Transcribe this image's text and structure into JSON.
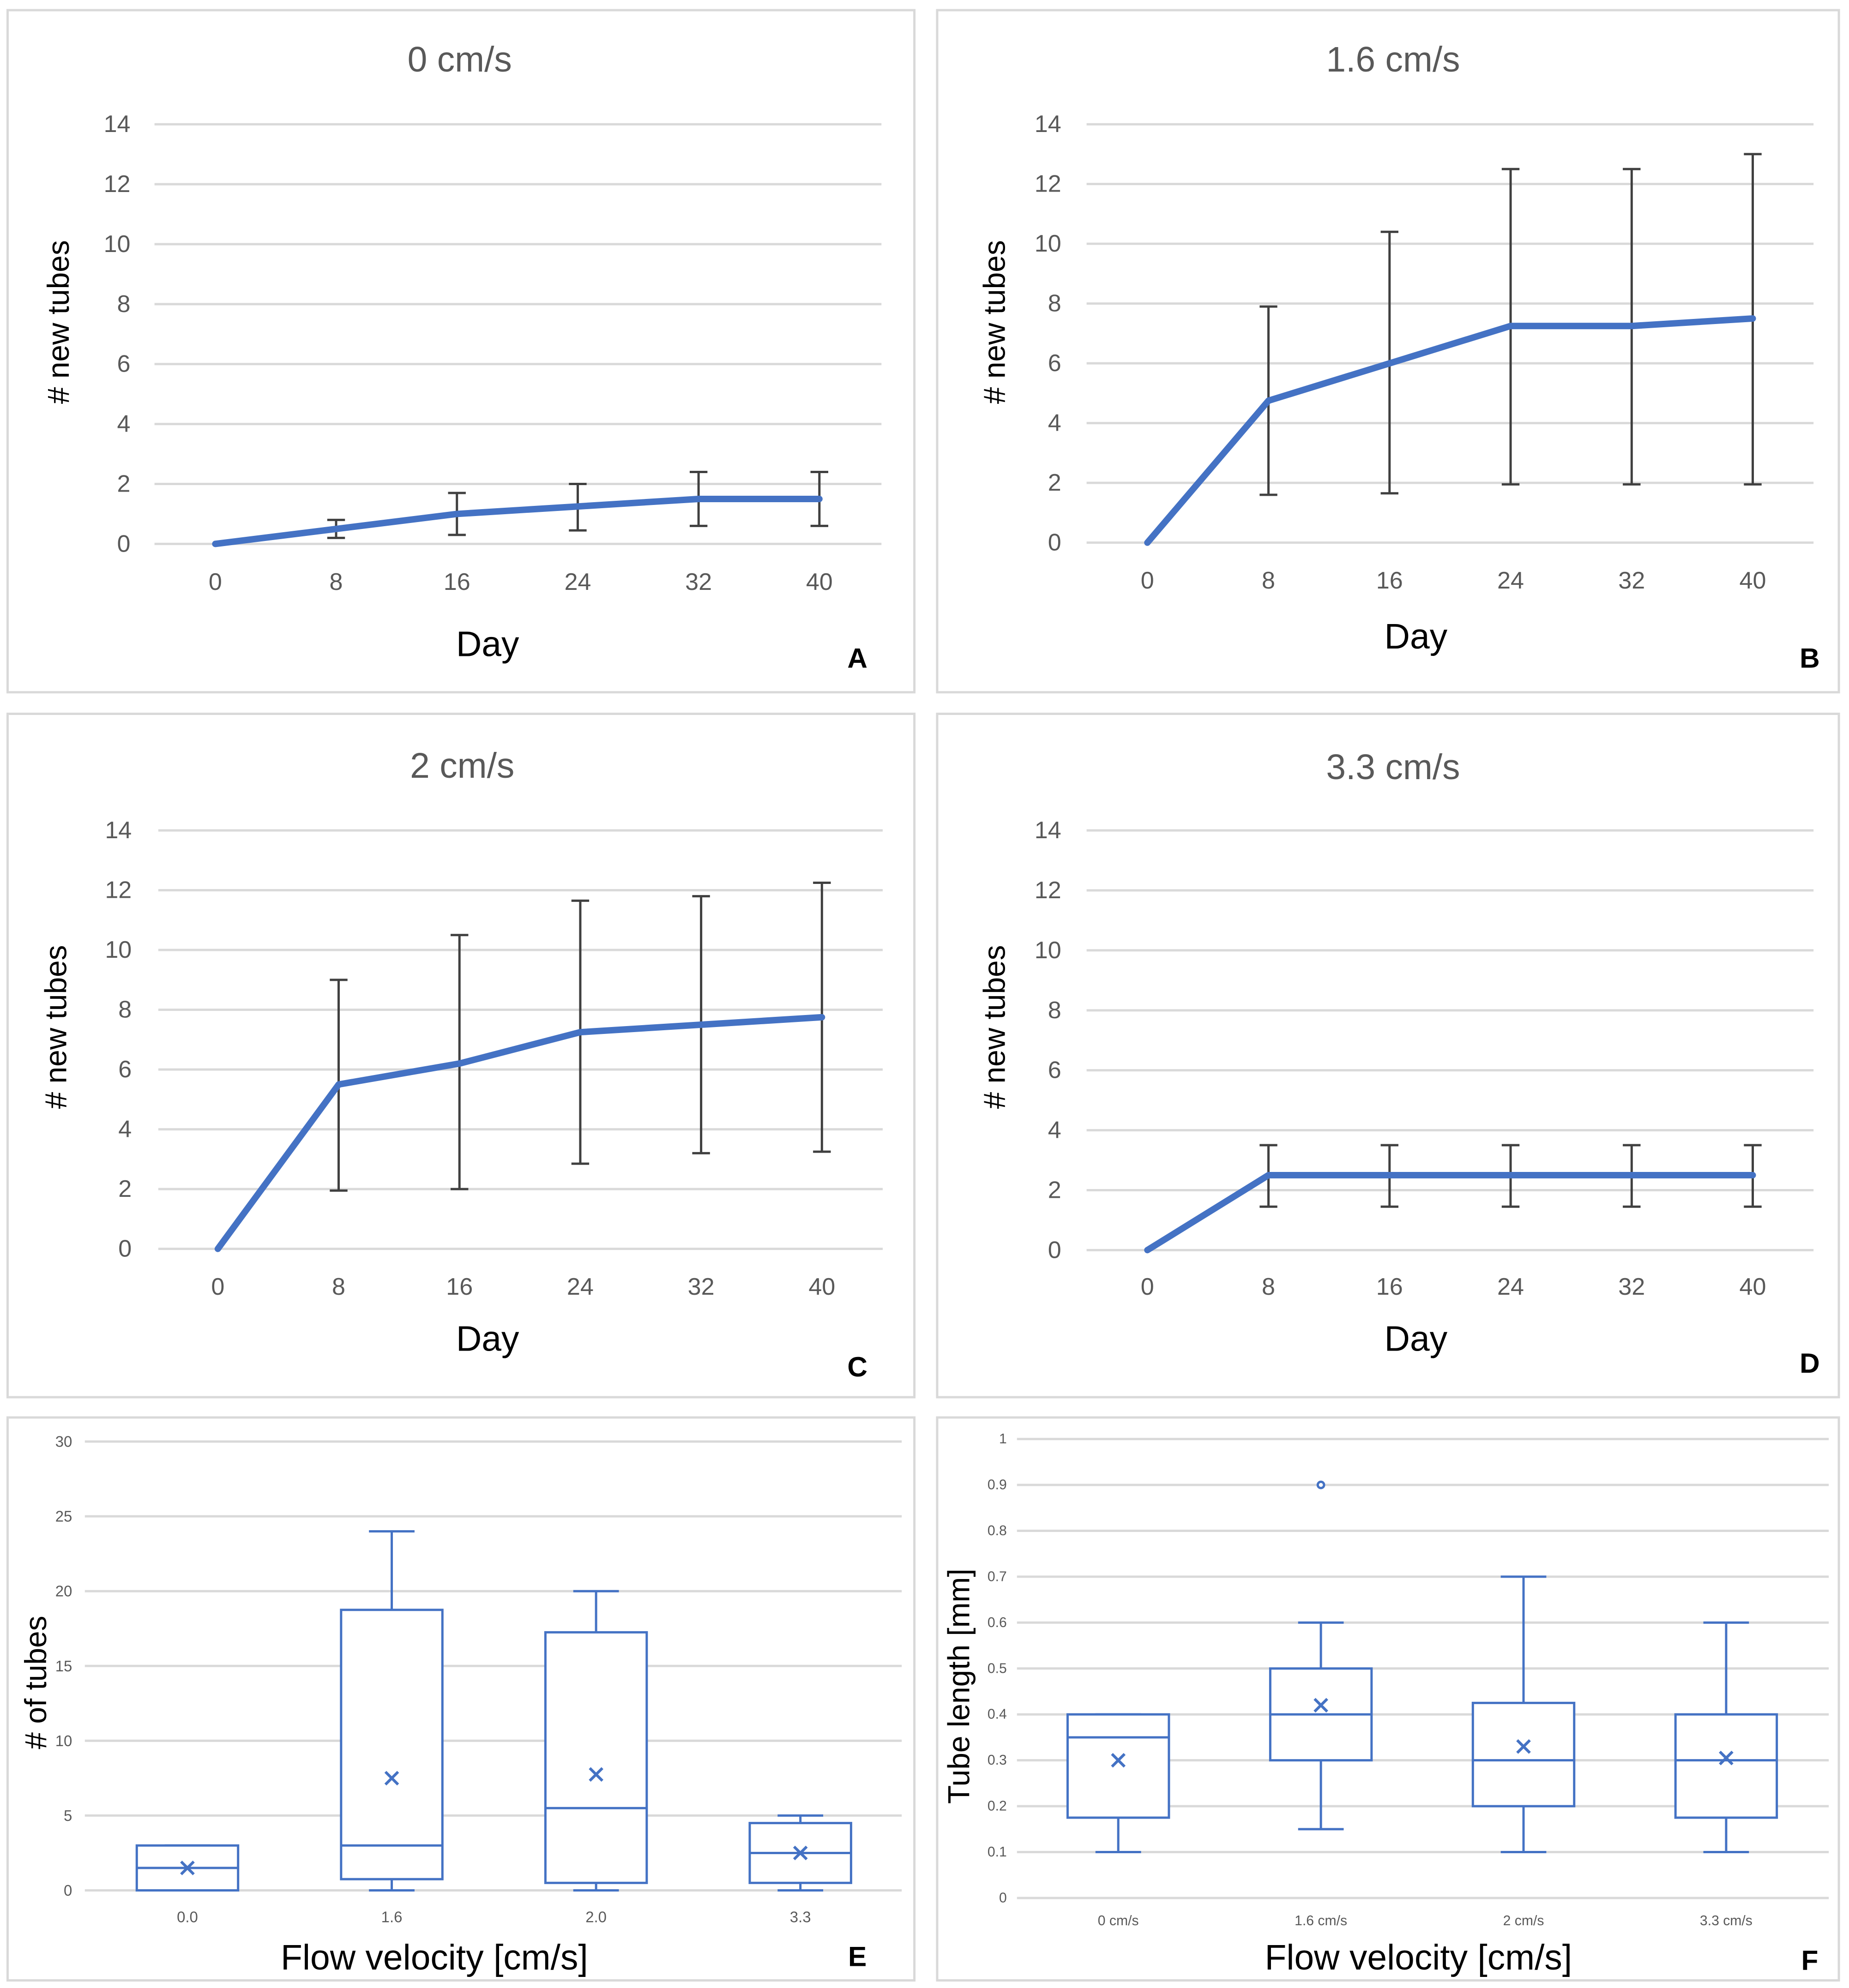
{
  "colors": {
    "series": "#4472C4",
    "error_bar": "#404040",
    "grid": "#d9d9d9",
    "axis_text": "#595959",
    "title_text": "#595959",
    "label_text": "#000000",
    "panel_border": "#d9d9d9"
  },
  "chart_data": [
    {
      "panel": "A",
      "type": "line",
      "title": "0 cm/s",
      "xlabel": "Day",
      "ylabel": "# new tubes",
      "ylim": [
        0,
        14
      ],
      "yticks": [
        0,
        2,
        4,
        6,
        8,
        10,
        12,
        14
      ],
      "grid": true,
      "x": [
        0,
        8,
        16,
        24,
        32,
        40
      ],
      "y": [
        0,
        0.5,
        1.0,
        1.25,
        1.5,
        1.5
      ],
      "err_low": [
        0,
        0.2,
        0.3,
        0.45,
        0.6,
        0.6
      ],
      "err_high": [
        0,
        0.8,
        1.7,
        2.0,
        2.4,
        2.4
      ]
    },
    {
      "panel": "B",
      "type": "line",
      "title": "1.6 cm/s",
      "xlabel": "Day",
      "ylabel": "# new tubes",
      "ylim": [
        0,
        14
      ],
      "yticks": [
        0,
        2,
        4,
        6,
        8,
        10,
        12,
        14
      ],
      "grid": true,
      "x": [
        0,
        8,
        16,
        24,
        32,
        40
      ],
      "y": [
        0,
        4.75,
        6.0,
        7.25,
        7.25,
        7.5
      ],
      "err_low": [
        0,
        1.6,
        1.65,
        1.95,
        1.95,
        1.95
      ],
      "err_high": [
        0,
        7.9,
        10.4,
        12.5,
        12.5,
        13.0
      ]
    },
    {
      "panel": "C",
      "type": "line",
      "title": "2 cm/s",
      "xlabel": "Day",
      "ylabel": "# new tubes",
      "ylim": [
        0,
        14
      ],
      "yticks": [
        0,
        2,
        4,
        6,
        8,
        10,
        12,
        14
      ],
      "grid": true,
      "x": [
        0,
        8,
        16,
        24,
        32,
        40
      ],
      "y": [
        0,
        5.5,
        6.2,
        7.25,
        7.5,
        7.75
      ],
      "err_low": [
        0,
        1.95,
        2.0,
        2.85,
        3.2,
        3.25
      ],
      "err_high": [
        0,
        9.0,
        10.5,
        11.65,
        11.8,
        12.25
      ]
    },
    {
      "panel": "D",
      "type": "line",
      "title": "3.3 cm/s",
      "xlabel": "Day",
      "ylabel": "# new tubes",
      "ylim": [
        0,
        14
      ],
      "yticks": [
        0,
        2,
        4,
        6,
        8,
        10,
        12,
        14
      ],
      "grid": true,
      "x": [
        0,
        8,
        16,
        24,
        32,
        40
      ],
      "y": [
        0,
        2.5,
        2.5,
        2.5,
        2.5,
        2.5
      ],
      "err_low": [
        0,
        1.45,
        1.45,
        1.45,
        1.45,
        1.45
      ],
      "err_high": [
        0,
        3.5,
        3.5,
        3.5,
        3.5,
        3.5
      ]
    },
    {
      "panel": "E",
      "type": "box",
      "title": "",
      "xlabel": "Flow velocity [cm/s]",
      "ylabel": "# of tubes",
      "ylim": [
        0,
        30
      ],
      "yticks": [
        0,
        5,
        10,
        15,
        20,
        25,
        30
      ],
      "grid": true,
      "categories": [
        "0.0",
        "1.6",
        "2.0",
        "3.3"
      ],
      "boxes": [
        {
          "min": 0,
          "q1": 0,
          "median": 1.5,
          "q3": 3,
          "max": 3,
          "mean": 1.5
        },
        {
          "min": 0,
          "q1": 0.75,
          "median": 3,
          "q3": 18.75,
          "max": 24,
          "mean": 7.5
        },
        {
          "min": 0,
          "q1": 0.5,
          "median": 5.5,
          "q3": 17.25,
          "max": 20,
          "mean": 7.75
        },
        {
          "min": 0,
          "q1": 0.5,
          "median": 2.5,
          "q3": 4.5,
          "max": 5,
          "mean": 2.5
        }
      ]
    },
    {
      "panel": "F",
      "type": "box",
      "title": "",
      "xlabel": "Flow velocity [cm/s]",
      "ylabel": "Tube length [mm]",
      "ylim": [
        0,
        1
      ],
      "yticks": [
        "0",
        "0.1",
        "0.2",
        "0.3",
        "0.4",
        "0.5",
        "0.6",
        "0.7",
        "0.8",
        "0.9",
        "1"
      ],
      "grid": true,
      "categories": [
        "0 cm/s",
        "1.6 cm/s",
        "2 cm/s",
        "3.3 cm/s"
      ],
      "boxes": [
        {
          "min": 0.1,
          "q1": 0.175,
          "median": 0.35,
          "q3": 0.4,
          "max": 0.4,
          "mean": 0.3,
          "outliers": []
        },
        {
          "min": 0.15,
          "q1": 0.3,
          "median": 0.4,
          "q3": 0.5,
          "max": 0.6,
          "mean": 0.42,
          "outliers": [
            0.9
          ]
        },
        {
          "min": 0.1,
          "q1": 0.2,
          "median": 0.3,
          "q3": 0.425,
          "max": 0.7,
          "mean": 0.33,
          "outliers": []
        },
        {
          "min": 0.1,
          "q1": 0.175,
          "median": 0.3,
          "q3": 0.4,
          "max": 0.6,
          "mean": 0.305,
          "outliers": []
        }
      ]
    }
  ]
}
